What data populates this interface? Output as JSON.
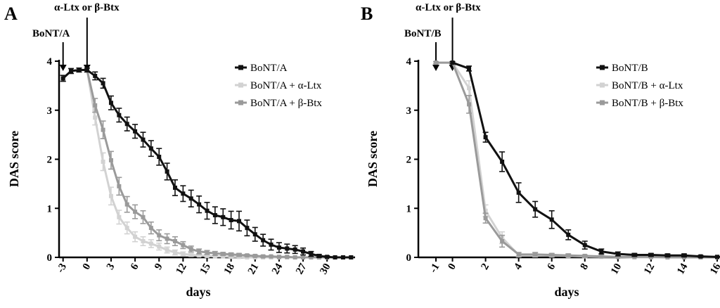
{
  "chart_data": [
    {
      "panel": "A",
      "type": "line",
      "xlabel": "days",
      "ylabel": "DAS score",
      "xlim": [
        -3.5,
        33.5
      ],
      "ylim": [
        0,
        4
      ],
      "xticks": [
        -3,
        0,
        3,
        6,
        9,
        12,
        15,
        18,
        21,
        24,
        27,
        30
      ],
      "yticks": [
        0,
        1,
        2,
        3,
        4
      ],
      "annotations": [
        {
          "text": "BoNT/A",
          "x": -3
        },
        {
          "text": "α-Ltx or β-Btx",
          "x": 0
        }
      ],
      "series": [
        {
          "name": "BoNT/A",
          "color": "#111111",
          "x": [
            -3,
            -2,
            -1,
            0,
            1,
            2,
            3,
            4,
            5,
            6,
            7,
            8,
            9,
            10,
            11,
            12,
            13,
            14,
            15,
            16,
            17,
            18,
            19,
            20,
            21,
            22,
            23,
            24,
            25,
            26,
            27,
            28,
            29,
            30,
            31,
            32,
            33
          ],
          "y": [
            3.65,
            3.8,
            3.82,
            3.82,
            3.7,
            3.55,
            3.15,
            2.9,
            2.72,
            2.57,
            2.4,
            2.22,
            2.05,
            1.75,
            1.42,
            1.3,
            1.2,
            1.08,
            0.95,
            0.86,
            0.82,
            0.76,
            0.74,
            0.6,
            0.47,
            0.35,
            0.26,
            0.2,
            0.18,
            0.16,
            0.12,
            0.07,
            0.03,
            0.01,
            0,
            0,
            0
          ],
          "err": [
            0.06,
            0.05,
            0.04,
            0.04,
            0.08,
            0.1,
            0.14,
            0.14,
            0.14,
            0.14,
            0.15,
            0.16,
            0.17,
            0.17,
            0.16,
            0.16,
            0.17,
            0.17,
            0.17,
            0.17,
            0.17,
            0.18,
            0.2,
            0.16,
            0.14,
            0.12,
            0.11,
            0.1,
            0.09,
            0.08,
            0.07,
            0.05,
            0.03,
            0.02,
            0,
            0,
            0
          ]
        },
        {
          "name": "BoNT/A + α-Ltx",
          "color": "#d2d2d2",
          "x": [
            -3,
            -2,
            -1,
            0,
            1,
            2,
            3,
            4,
            5,
            6,
            7,
            8,
            9,
            10,
            11,
            12,
            13,
            14,
            15,
            16,
            17,
            18,
            19,
            20,
            21,
            22,
            23,
            24,
            25,
            26,
            27,
            28,
            29,
            30,
            31,
            32,
            33
          ],
          "y": [
            3.65,
            3.8,
            3.82,
            3.82,
            2.85,
            1.95,
            1.25,
            0.82,
            0.6,
            0.42,
            0.33,
            0.28,
            0.22,
            0.15,
            0.1,
            0.07,
            0.05,
            0.04,
            0.03,
            0.02,
            0.02,
            0.01,
            0.01,
            0,
            0,
            0,
            0,
            0,
            0,
            0,
            0,
            0,
            0,
            0,
            0,
            0,
            0
          ],
          "err": [
            0.06,
            0.05,
            0.04,
            0.04,
            0.15,
            0.18,
            0.18,
            0.14,
            0.12,
            0.1,
            0.09,
            0.08,
            0.07,
            0.06,
            0.05,
            0.04,
            0.03,
            0.02,
            0.02,
            0.01,
            0.01,
            0.01,
            0.01,
            0,
            0,
            0,
            0,
            0,
            0,
            0,
            0,
            0,
            0,
            0,
            0,
            0,
            0
          ]
        },
        {
          "name": "BoNT/A + β-Btx",
          "color": "#9a9a9a",
          "x": [
            -3,
            -2,
            -1,
            0,
            1,
            2,
            3,
            4,
            5,
            6,
            7,
            8,
            9,
            10,
            11,
            12,
            13,
            14,
            15,
            16,
            17,
            18,
            19,
            20,
            21,
            22,
            23,
            24,
            25,
            26,
            27,
            28,
            29,
            30,
            31,
            32,
            33
          ],
          "y": [
            3.65,
            3.8,
            3.82,
            3.82,
            3.1,
            2.6,
            1.98,
            1.45,
            1.08,
            0.93,
            0.82,
            0.6,
            0.45,
            0.38,
            0.33,
            0.25,
            0.17,
            0.12,
            0.1,
            0.08,
            0.07,
            0.06,
            0.05,
            0.04,
            0.03,
            0.02,
            0.02,
            0.01,
            0.01,
            0,
            0,
            0,
            0,
            0,
            0,
            0,
            0
          ],
          "err": [
            0.06,
            0.05,
            0.04,
            0.04,
            0.14,
            0.18,
            0.18,
            0.18,
            0.16,
            0.14,
            0.13,
            0.12,
            0.11,
            0.1,
            0.09,
            0.07,
            0.06,
            0.05,
            0.04,
            0.04,
            0.03,
            0.03,
            0.03,
            0.02,
            0.02,
            0.02,
            0.01,
            0.01,
            0.01,
            0,
            0,
            0,
            0,
            0,
            0,
            0,
            0
          ]
        }
      ]
    },
    {
      "panel": "B",
      "type": "line",
      "xlabel": "days",
      "ylabel": "DAS score",
      "xlim": [
        -1,
        16
      ],
      "ylim": [
        0,
        4
      ],
      "xticks": [
        -1,
        0,
        2,
        4,
        6,
        8,
        10,
        12,
        14,
        16
      ],
      "yticks": [
        0,
        1,
        2,
        3,
        4
      ],
      "annotations": [
        {
          "text": "BoNT/B",
          "x": -1
        },
        {
          "text": "α-Ltx or β-Btx",
          "x": 0
        }
      ],
      "series": [
        {
          "name": "BoNT/B",
          "color": "#111111",
          "x": [
            0,
            1,
            2,
            3,
            4,
            5,
            6,
            7,
            8,
            9,
            10,
            11,
            12,
            13,
            14,
            15,
            16
          ],
          "y": [
            3.97,
            3.85,
            2.45,
            1.95,
            1.32,
            0.98,
            0.77,
            0.46,
            0.25,
            0.12,
            0.07,
            0.05,
            0.05,
            0.04,
            0.04,
            0.02,
            0.01
          ],
          "err": [
            0.02,
            0.05,
            0.1,
            0.2,
            0.2,
            0.16,
            0.18,
            0.1,
            0.08,
            0.05,
            0.04,
            0.03,
            0.03,
            0.03,
            0.03,
            0.02,
            0.01
          ]
        },
        {
          "name": "BoNT/B + α-Ltx",
          "color": "#d2d2d2",
          "x": [
            -1,
            0,
            1,
            2,
            3,
            4,
            5,
            6,
            7,
            8,
            9,
            10,
            11,
            12,
            13,
            14,
            15,
            16
          ],
          "y": [
            3.97,
            3.97,
            3.45,
            0.95,
            0.4,
            0.05,
            0.05,
            0.04,
            0.03,
            0.02,
            0.01,
            0.01,
            0,
            0,
            0,
            0,
            0,
            0
          ],
          "err": [
            0.02,
            0.02,
            0.15,
            0.12,
            0.12,
            0.04,
            0.04,
            0.03,
            0.02,
            0.02,
            0.01,
            0.01,
            0,
            0,
            0,
            0,
            0,
            0
          ]
        },
        {
          "name": "BoNT/B + β-Btx",
          "color": "#9a9a9a",
          "x": [
            -1,
            0,
            1,
            2,
            3,
            4,
            5,
            6,
            7,
            8,
            9,
            10,
            11,
            12,
            13,
            14,
            15,
            16
          ],
          "y": [
            3.97,
            3.97,
            3.12,
            0.8,
            0.33,
            0.06,
            0.06,
            0.05,
            0.04,
            0.03,
            0.02,
            0.01,
            0.01,
            0.01,
            0,
            0,
            0,
            0
          ],
          "err": [
            0.02,
            0.02,
            0.18,
            0.1,
            0.12,
            0.04,
            0.04,
            0.03,
            0.03,
            0.02,
            0.02,
            0.01,
            0.01,
            0.01,
            0,
            0,
            0,
            0
          ]
        }
      ]
    }
  ]
}
